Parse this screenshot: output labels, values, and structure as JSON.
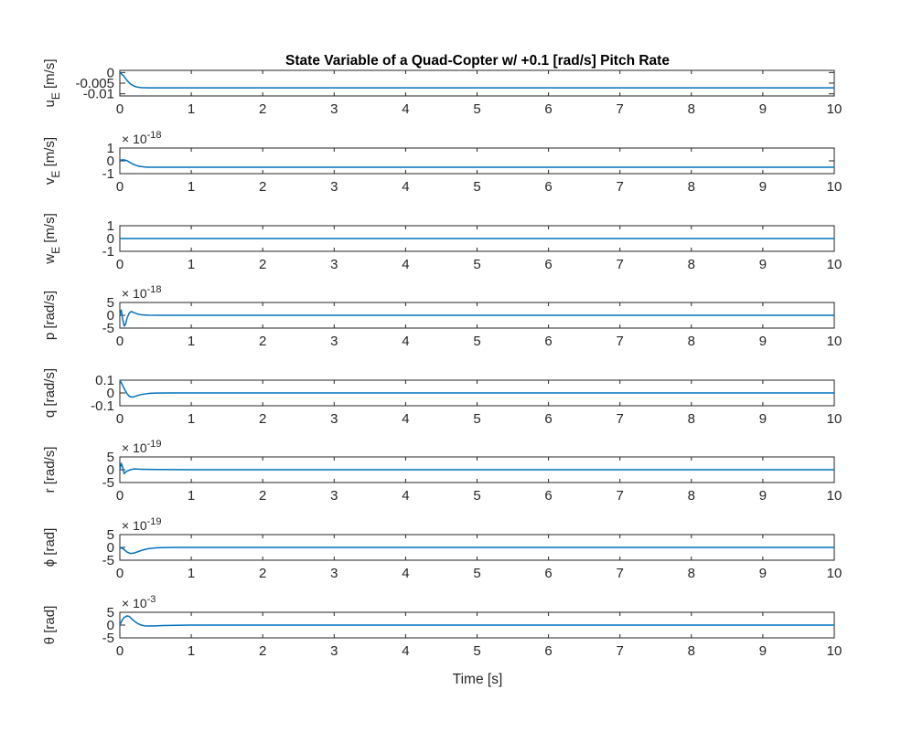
{
  "figure": {
    "title": "State Variable of a Quad-Copter w/ +0.1 [rad/s] Pitch Rate",
    "xlabel": "Time [s]",
    "line_color": "#0072BD",
    "axis_color": "#262626"
  },
  "chart_data": [
    {
      "type": "line",
      "ylabel": "u_E [m/s]",
      "ylabel_main": "u",
      "ylabel_sub": "E",
      "ylabel_rest": " [m/s]",
      "multiplier": "",
      "multiplier_exp": "",
      "xlim": [
        0,
        10
      ],
      "ylim": [
        -0.011,
        0.001
      ],
      "xticks": [
        "0",
        "1",
        "2",
        "3",
        "4",
        "5",
        "6",
        "7",
        "8",
        "9",
        "10"
      ],
      "yticks": [
        {
          "v": 0,
          "t": "0"
        },
        {
          "v": -0.005,
          "t": "-0.005"
        },
        {
          "v": -0.01,
          "t": "-0.01"
        }
      ],
      "x": [
        0,
        0.05,
        0.1,
        0.15,
        0.2,
        0.25,
        0.3,
        0.4,
        0.5,
        1,
        2,
        4,
        6,
        8,
        10
      ],
      "y": [
        0,
        -0.0015,
        -0.0037,
        -0.0054,
        -0.0064,
        -0.0069,
        -0.0071,
        -0.0072,
        -0.0072,
        -0.0072,
        -0.0072,
        -0.0072,
        -0.0072,
        -0.0072,
        -0.0072
      ]
    },
    {
      "type": "line",
      "ylabel": "v_E [m/s]",
      "ylabel_main": "v",
      "ylabel_sub": "E",
      "ylabel_rest": " [m/s]",
      "multiplier": "× 10",
      "multiplier_exp": "-18",
      "xlim": [
        0,
        10
      ],
      "ylim": [
        -1,
        1
      ],
      "xticks": [
        "0",
        "1",
        "2",
        "3",
        "4",
        "5",
        "6",
        "7",
        "8",
        "9",
        "10"
      ],
      "yticks": [
        {
          "v": 1,
          "t": "1"
        },
        {
          "v": 0,
          "t": "0"
        },
        {
          "v": -1,
          "t": "-1"
        }
      ],
      "x": [
        0,
        0.05,
        0.1,
        0.15,
        0.2,
        0.25,
        0.3,
        0.35,
        0.4,
        0.5,
        1,
        2,
        4,
        6,
        8,
        10
      ],
      "y": [
        0.05,
        0.08,
        0.02,
        -0.15,
        -0.3,
        -0.4,
        -0.45,
        -0.48,
        -0.5,
        -0.5,
        -0.5,
        -0.5,
        -0.5,
        -0.5,
        -0.5,
        -0.5
      ]
    },
    {
      "type": "line",
      "ylabel": "w_E [m/s]",
      "ylabel_main": "w",
      "ylabel_sub": "E",
      "ylabel_rest": " [m/s]",
      "multiplier": "",
      "multiplier_exp": "",
      "xlim": [
        0,
        10
      ],
      "ylim": [
        -1,
        1
      ],
      "xticks": [
        "0",
        "1",
        "2",
        "3",
        "4",
        "5",
        "6",
        "7",
        "8",
        "9",
        "10"
      ],
      "yticks": [
        {
          "v": 1,
          "t": "1"
        },
        {
          "v": 0,
          "t": "0"
        },
        {
          "v": -1,
          "t": "-1"
        }
      ],
      "x": [
        0,
        10
      ],
      "y": [
        0,
        0
      ]
    },
    {
      "type": "line",
      "ylabel": "p [rad/s]",
      "ylabel_main": "p",
      "ylabel_sub": "",
      "ylabel_rest": " [rad/s]",
      "multiplier": "× 10",
      "multiplier_exp": "-18",
      "xlim": [
        0,
        10
      ],
      "ylim": [
        -5,
        5
      ],
      "xticks": [
        "0",
        "1",
        "2",
        "3",
        "4",
        "5",
        "6",
        "7",
        "8",
        "9",
        "10"
      ],
      "yticks": [
        {
          "v": 5,
          "t": "5"
        },
        {
          "v": 0,
          "t": "0"
        },
        {
          "v": -5,
          "t": "-5"
        }
      ],
      "x": [
        0,
        0.02,
        0.04,
        0.06,
        0.08,
        0.1,
        0.13,
        0.16,
        0.2,
        0.25,
        0.3,
        0.4,
        0.6,
        1,
        2,
        4,
        6,
        8,
        10
      ],
      "y": [
        0,
        2,
        -1.5,
        -4.2,
        -3.5,
        -1.2,
        0.8,
        1.5,
        1.0,
        0.5,
        0.2,
        0.05,
        0,
        0,
        0,
        0,
        0,
        0,
        0
      ]
    },
    {
      "type": "line",
      "ylabel": "q [rad/s]",
      "ylabel_main": "q",
      "ylabel_sub": "",
      "ylabel_rest": " [rad/s]",
      "multiplier": "",
      "multiplier_exp": "",
      "xlim": [
        0,
        10
      ],
      "ylim": [
        -0.1,
        0.1
      ],
      "xticks": [
        "0",
        "1",
        "2",
        "3",
        "4",
        "5",
        "6",
        "7",
        "8",
        "9",
        "10"
      ],
      "yticks": [
        {
          "v": 0.1,
          "t": "0.1"
        },
        {
          "v": 0,
          "t": "0"
        },
        {
          "v": -0.1,
          "t": "-0.1"
        }
      ],
      "x": [
        0,
        0.03,
        0.06,
        0.1,
        0.13,
        0.16,
        0.2,
        0.25,
        0.3,
        0.4,
        0.5,
        0.7,
        1,
        2,
        4,
        6,
        8,
        10
      ],
      "y": [
        0.1,
        0.07,
        0.035,
        -0.005,
        -0.025,
        -0.032,
        -0.03,
        -0.02,
        -0.012,
        -0.004,
        -0.001,
        0,
        0,
        0,
        0,
        0,
        0,
        0
      ]
    },
    {
      "type": "line",
      "ylabel": "r [rad/s]",
      "ylabel_main": "r",
      "ylabel_sub": "",
      "ylabel_rest": " [rad/s]",
      "multiplier": "× 10",
      "multiplier_exp": "-19",
      "xlim": [
        0,
        10
      ],
      "ylim": [
        -5,
        5
      ],
      "xticks": [
        "0",
        "1",
        "2",
        "3",
        "4",
        "5",
        "6",
        "7",
        "8",
        "9",
        "10"
      ],
      "yticks": [
        {
          "v": 5,
          "t": "5"
        },
        {
          "v": 0,
          "t": "0"
        },
        {
          "v": -5,
          "t": "-5"
        }
      ],
      "x": [
        0,
        0.02,
        0.04,
        0.06,
        0.08,
        0.1,
        0.15,
        0.2,
        0.3,
        0.5,
        1,
        2,
        4,
        6,
        8,
        10
      ],
      "y": [
        0,
        2.5,
        1.0,
        -1.5,
        -1.0,
        -0.5,
        0,
        0.3,
        0.2,
        0.1,
        0,
        0,
        0,
        0,
        0,
        0
      ]
    },
    {
      "type": "line",
      "ylabel": "ϕ [rad]",
      "ylabel_main": "ϕ",
      "ylabel_sub": "",
      "ylabel_rest": " [rad]",
      "multiplier": "× 10",
      "multiplier_exp": "-19",
      "xlim": [
        0,
        10
      ],
      "ylim": [
        -5,
        5
      ],
      "xticks": [
        "0",
        "1",
        "2",
        "3",
        "4",
        "5",
        "6",
        "7",
        "8",
        "9",
        "10"
      ],
      "yticks": [
        {
          "v": 5,
          "t": "5"
        },
        {
          "v": 0,
          "t": "0"
        },
        {
          "v": -5,
          "t": "-5"
        }
      ],
      "x": [
        0,
        0.05,
        0.1,
        0.15,
        0.2,
        0.25,
        0.3,
        0.35,
        0.4,
        0.5,
        0.6,
        0.8,
        1,
        2,
        4,
        6,
        8,
        10
      ],
      "y": [
        0,
        -0.6,
        -1.8,
        -2.4,
        -2.2,
        -1.7,
        -1.2,
        -0.8,
        -0.5,
        -0.2,
        -0.1,
        0,
        0,
        0,
        0,
        0,
        0,
        0
      ]
    },
    {
      "type": "line",
      "ylabel": "θ [rad]",
      "ylabel_main": "θ",
      "ylabel_sub": "",
      "ylabel_rest": " [rad]",
      "multiplier": "× 10",
      "multiplier_exp": "-3",
      "xlim": [
        0,
        10
      ],
      "ylim": [
        -5,
        5
      ],
      "xticks": [
        "0",
        "1",
        "2",
        "3",
        "4",
        "5",
        "6",
        "7",
        "8",
        "9",
        "10"
      ],
      "yticks": [
        {
          "v": 5,
          "t": "5"
        },
        {
          "v": 0,
          "t": "0"
        },
        {
          "v": -5,
          "t": "-5"
        }
      ],
      "x": [
        0,
        0.03,
        0.06,
        0.1,
        0.13,
        0.16,
        0.2,
        0.25,
        0.3,
        0.35,
        0.4,
        0.5,
        0.6,
        0.8,
        1,
        2,
        4,
        6,
        8,
        10
      ],
      "y": [
        0,
        1.8,
        3.0,
        3.6,
        3.4,
        2.6,
        1.6,
        0.6,
        0.0,
        -0.3,
        -0.35,
        -0.3,
        -0.2,
        -0.1,
        0,
        0,
        0,
        0,
        0,
        0
      ]
    }
  ]
}
